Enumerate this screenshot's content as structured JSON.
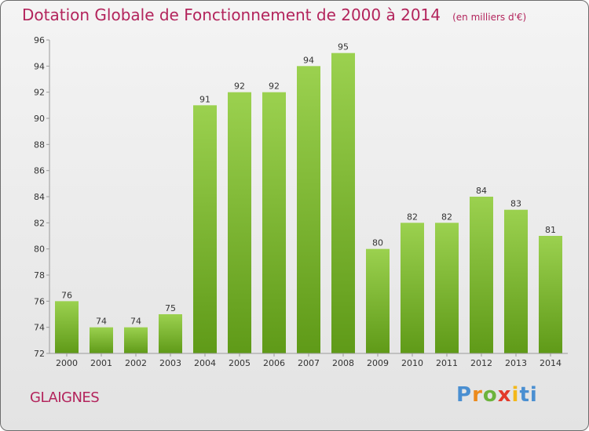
{
  "header": {
    "title": "Dotation Globale de Fonctionnement de 2000 à 2014",
    "unit": "(en milliers d'€)"
  },
  "footer": {
    "commune": "GLAIGNES",
    "brand": "Proxiti"
  },
  "chart_data": {
    "type": "bar",
    "title": "Dotation Globale de Fonctionnement de 2000 à 2014",
    "subtitle": "(en milliers d'€)",
    "categories": [
      "2000",
      "2001",
      "2002",
      "2003",
      "2004",
      "2005",
      "2006",
      "2007",
      "2008",
      "2009",
      "2010",
      "2011",
      "2012",
      "2013",
      "2014"
    ],
    "values": [
      76,
      74,
      74,
      75,
      91,
      92,
      92,
      94,
      95,
      80,
      82,
      82,
      84,
      83,
      81
    ],
    "ylim": [
      72,
      96
    ],
    "yticks": [
      72,
      74,
      76,
      78,
      80,
      82,
      84,
      86,
      88,
      90,
      92,
      94,
      96
    ],
    "grid": false,
    "bar_color": "#8cc63f",
    "bar_color_dark": "#5f9a18"
  }
}
